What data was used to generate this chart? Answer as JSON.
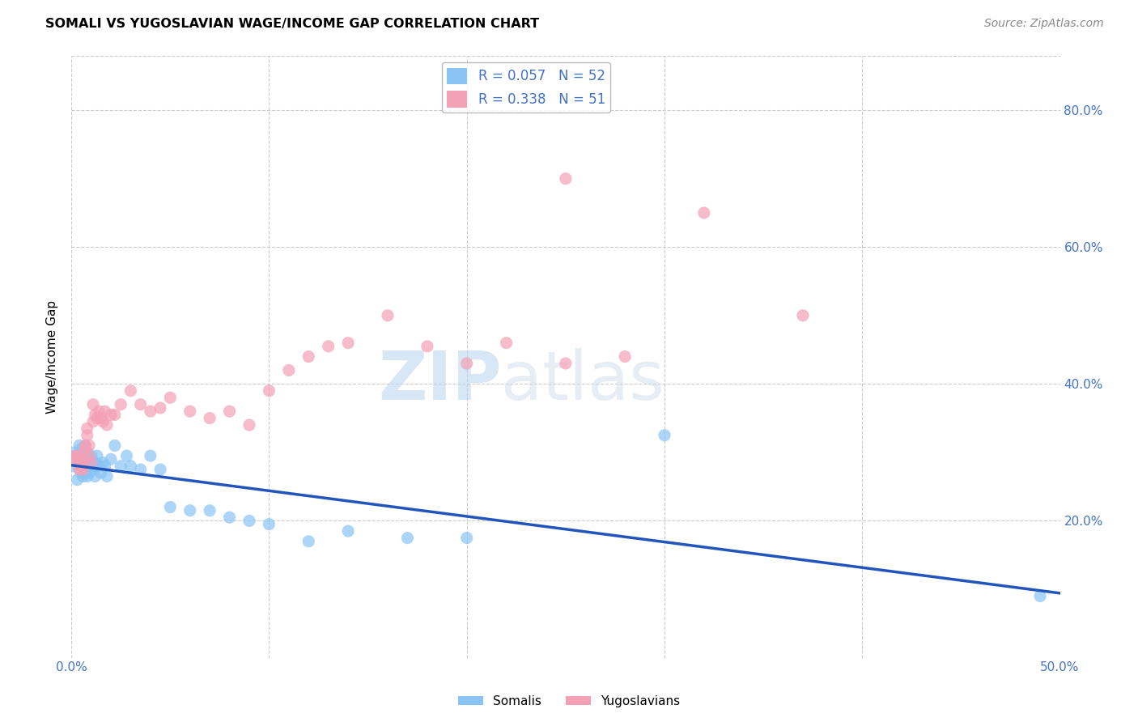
{
  "title": "SOMALI VS YUGOSLAVIAN WAGE/INCOME GAP CORRELATION CHART",
  "source": "Source: ZipAtlas.com",
  "ylabel_label": "Wage/Income Gap",
  "xlim": [
    0.0,
    0.5
  ],
  "ylim": [
    0.0,
    0.88
  ],
  "xtick_labels": [
    "0.0%",
    "",
    "",
    "",
    "",
    "50.0%"
  ],
  "xtick_vals": [
    0.0,
    0.1,
    0.2,
    0.3,
    0.4,
    0.5
  ],
  "ytick_labels": [
    "20.0%",
    "40.0%",
    "60.0%",
    "80.0%"
  ],
  "ytick_vals": [
    0.2,
    0.4,
    0.6,
    0.8
  ],
  "somali_R": 0.057,
  "somali_N": 52,
  "yugoslav_R": 0.338,
  "yugoslav_N": 51,
  "somali_color": "#89C4F4",
  "yugoslav_color": "#F4A0B5",
  "somali_line_color": "#2255BB",
  "yugoslav_line_color": "#DD4466",
  "watermark_zip": "ZIP",
  "watermark_atlas": "atlas",
  "background_color": "#FFFFFF",
  "grid_color": "#CCCCCC",
  "axis_color": "#4472C4",
  "somali_x": [
    0.001,
    0.002,
    0.003,
    0.003,
    0.004,
    0.004,
    0.005,
    0.005,
    0.005,
    0.006,
    0.006,
    0.006,
    0.007,
    0.007,
    0.007,
    0.008,
    0.008,
    0.008,
    0.009,
    0.009,
    0.01,
    0.01,
    0.011,
    0.011,
    0.012,
    0.012,
    0.013,
    0.014,
    0.015,
    0.016,
    0.017,
    0.018,
    0.02,
    0.022,
    0.025,
    0.028,
    0.03,
    0.035,
    0.04,
    0.045,
    0.05,
    0.06,
    0.07,
    0.08,
    0.09,
    0.1,
    0.12,
    0.14,
    0.17,
    0.2,
    0.3,
    0.49
  ],
  "somali_y": [
    0.28,
    0.3,
    0.295,
    0.26,
    0.285,
    0.31,
    0.27,
    0.285,
    0.305,
    0.265,
    0.28,
    0.3,
    0.27,
    0.29,
    0.31,
    0.265,
    0.28,
    0.3,
    0.27,
    0.285,
    0.28,
    0.295,
    0.275,
    0.285,
    0.265,
    0.285,
    0.295,
    0.28,
    0.27,
    0.285,
    0.28,
    0.265,
    0.29,
    0.31,
    0.28,
    0.295,
    0.28,
    0.275,
    0.295,
    0.275,
    0.22,
    0.215,
    0.215,
    0.205,
    0.2,
    0.195,
    0.17,
    0.185,
    0.175,
    0.175,
    0.325,
    0.09
  ],
  "yugoslav_x": [
    0.001,
    0.002,
    0.003,
    0.004,
    0.004,
    0.005,
    0.005,
    0.006,
    0.006,
    0.007,
    0.007,
    0.008,
    0.008,
    0.009,
    0.009,
    0.01,
    0.011,
    0.011,
    0.012,
    0.013,
    0.014,
    0.015,
    0.016,
    0.017,
    0.018,
    0.02,
    0.022,
    0.025,
    0.03,
    0.035,
    0.04,
    0.045,
    0.05,
    0.06,
    0.07,
    0.08,
    0.09,
    0.1,
    0.11,
    0.12,
    0.13,
    0.14,
    0.16,
    0.18,
    0.2,
    0.22,
    0.25,
    0.28,
    0.32,
    0.37,
    0.25
  ],
  "yugoslav_y": [
    0.29,
    0.295,
    0.295,
    0.275,
    0.28,
    0.28,
    0.285,
    0.275,
    0.29,
    0.305,
    0.31,
    0.325,
    0.335,
    0.295,
    0.31,
    0.285,
    0.345,
    0.37,
    0.355,
    0.35,
    0.36,
    0.35,
    0.345,
    0.36,
    0.34,
    0.355,
    0.355,
    0.37,
    0.39,
    0.37,
    0.36,
    0.365,
    0.38,
    0.36,
    0.35,
    0.36,
    0.34,
    0.39,
    0.42,
    0.44,
    0.455,
    0.46,
    0.5,
    0.455,
    0.43,
    0.46,
    0.43,
    0.44,
    0.65,
    0.5,
    0.7
  ]
}
